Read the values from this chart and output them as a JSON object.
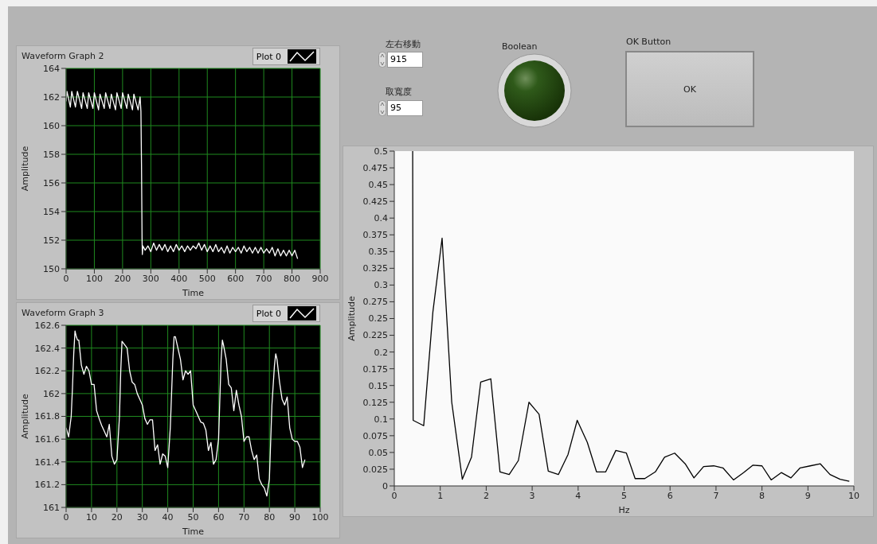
{
  "chart_data": [
    {
      "type": "line",
      "title": "Waveform Graph 2",
      "xlabel": "Time",
      "ylabel": "Amplitude",
      "xlim": [
        0,
        900
      ],
      "xticks": [
        0,
        100,
        200,
        300,
        400,
        500,
        600,
        700,
        800,
        900
      ],
      "ylim": [
        150,
        164
      ],
      "yticks": [
        150,
        152,
        154,
        156,
        158,
        160,
        162,
        164
      ],
      "grid": true,
      "legend": "top right",
      "marker": "none",
      "line_style": "solid",
      "series": [
        {
          "name": "Plot 0",
          "color": "#ffffff",
          "x": [
            0,
            3,
            15,
            20,
            33,
            40,
            55,
            60,
            75,
            80,
            95,
            100,
            115,
            120,
            135,
            140,
            155,
            160,
            175,
            180,
            195,
            200,
            215,
            220,
            235,
            240,
            255,
            262,
            265,
            267,
            269,
            270,
            272,
            280,
            290,
            300,
            310,
            320,
            330,
            340,
            350,
            360,
            370,
            380,
            390,
            400,
            410,
            420,
            430,
            440,
            450,
            460,
            470,
            480,
            490,
            500,
            510,
            520,
            530,
            540,
            550,
            560,
            570,
            580,
            590,
            600,
            610,
            620,
            630,
            640,
            650,
            660,
            670,
            680,
            690,
            700,
            710,
            720,
            730,
            740,
            750,
            760,
            770,
            780,
            790,
            800,
            810,
            820
          ],
          "values": [
            161.7,
            162.4,
            161.3,
            162.4,
            161.3,
            162.4,
            161.2,
            162.3,
            161.2,
            162.3,
            161.2,
            162.3,
            161.1,
            162.2,
            161.2,
            162.3,
            161.2,
            162.2,
            161.1,
            162.3,
            161.2,
            162.3,
            161.2,
            162.2,
            161.1,
            162.2,
            161.1,
            162.0,
            161.0,
            157.3,
            152.1,
            151.0,
            151.6,
            151.3,
            151.6,
            151.2,
            151.8,
            151.3,
            151.7,
            151.3,
            151.7,
            151.2,
            151.6,
            151.2,
            151.7,
            151.3,
            151.6,
            151.2,
            151.6,
            151.3,
            151.6,
            151.4,
            151.8,
            151.3,
            151.7,
            151.2,
            151.6,
            151.2,
            151.7,
            151.2,
            151.5,
            151.1,
            151.6,
            151.1,
            151.5,
            151.2,
            151.5,
            151.1,
            151.6,
            151.2,
            151.5,
            151.1,
            151.5,
            151.1,
            151.5,
            151.1,
            151.4,
            151.1,
            151.5,
            150.9,
            151.4,
            150.9,
            151.3,
            150.9,
            151.3,
            150.9,
            151.3,
            150.7
          ]
        }
      ]
    },
    {
      "type": "other",
      "annotations": [
        "左右移動",
        "915",
        "取寬度",
        "95",
        "Boolean",
        "OK Button",
        "OK"
      ]
    },
    {
      "type": "line",
      "xlabel": "Hz",
      "ylabel": "Amplitude",
      "xlim": [
        0,
        10
      ],
      "xticks": [
        0,
        1,
        2,
        3,
        4,
        5,
        6,
        7,
        8,
        9,
        10
      ],
      "ylim": [
        0,
        0.5
      ],
      "yticks": [
        0,
        0.025,
        0.05,
        0.075,
        0.1,
        0.125,
        0.15,
        0.175,
        0.2,
        0.225,
        0.25,
        0.275,
        0.3,
        0.325,
        0.35,
        0.375,
        0.4,
        0.425,
        0.45,
        0.475,
        0.5
      ],
      "grid": false,
      "marker": "none",
      "line_style": "solid",
      "series": [
        {
          "color": "#000000",
          "x": [
            0.4,
            0.41,
            0.64,
            0.84,
            1.04,
            1.25,
            1.48,
            1.68,
            1.88,
            2.1,
            2.3,
            2.5,
            2.7,
            2.93,
            3.15,
            3.35,
            3.57,
            3.78,
            3.98,
            4.2,
            4.4,
            4.6,
            4.82,
            5.05,
            5.24,
            5.45,
            5.68,
            5.88,
            6.1,
            6.33,
            6.52,
            6.73,
            6.95,
            7.15,
            7.38,
            7.6,
            7.8,
            8.0,
            8.2,
            8.42,
            8.63,
            8.83,
            9.05,
            9.27,
            9.48,
            9.7,
            9.9
          ],
          "values": [
            0.5,
            0.098,
            0.09,
            0.26,
            0.37,
            0.125,
            0.01,
            0.043,
            0.155,
            0.16,
            0.021,
            0.017,
            0.038,
            0.125,
            0.107,
            0.022,
            0.017,
            0.047,
            0.098,
            0.065,
            0.021,
            0.021,
            0.053,
            0.049,
            0.011,
            0.011,
            0.021,
            0.043,
            0.049,
            0.033,
            0.012,
            0.029,
            0.03,
            0.027,
            0.009,
            0.02,
            0.031,
            0.03,
            0.009,
            0.02,
            0.012,
            0.027,
            0.03,
            0.033,
            0.017,
            0.01,
            0.007
          ]
        }
      ]
    },
    {
      "type": "line",
      "title": "Waveform Graph 3",
      "xlabel": "Time",
      "ylabel": "Amplitude",
      "xlim": [
        0,
        100
      ],
      "xticks": [
        0,
        10,
        20,
        30,
        40,
        50,
        60,
        70,
        80,
        90,
        100
      ],
      "ylim": [
        161,
        162.6
      ],
      "yticks": [
        161,
        161.2,
        161.4,
        161.6,
        161.8,
        162,
        162.2,
        162.4,
        162.6
      ],
      "grid": true,
      "legend": "top right",
      "marker": "none",
      "line_style": "solid",
      "series": [
        {
          "name": "Plot 0",
          "color": "#ffffff",
          "x": [
            0,
            1,
            2,
            2.5,
            3,
            3.5,
            4,
            4.5,
            5,
            6,
            7,
            8,
            9,
            10,
            11,
            12,
            13,
            14,
            15,
            16,
            17,
            18,
            19,
            20,
            21,
            21.5,
            22,
            23,
            24,
            25,
            26,
            27,
            28,
            29,
            30,
            31,
            32,
            33,
            34,
            35,
            36,
            37,
            38,
            39,
            40,
            41,
            42,
            42.5,
            43,
            44,
            45,
            46,
            47,
            48,
            49,
            50,
            51,
            52,
            53,
            54,
            55,
            56,
            57,
            58,
            59,
            60,
            61,
            61.5,
            62,
            63,
            64,
            65,
            66,
            67,
            68,
            69,
            70,
            71,
            72,
            73,
            74,
            75,
            76,
            77,
            78,
            79,
            80,
            81,
            82,
            82.5,
            83,
            84,
            85,
            86,
            87,
            88,
            89,
            90,
            91,
            92,
            93,
            94
          ],
          "values": [
            161.7,
            161.62,
            161.8,
            162.05,
            162.35,
            162.55,
            162.5,
            162.47,
            162.47,
            162.25,
            162.17,
            162.24,
            162.2,
            162.08,
            162.08,
            161.85,
            161.78,
            161.72,
            161.67,
            161.62,
            161.73,
            161.45,
            161.38,
            161.42,
            161.8,
            162.2,
            162.46,
            162.43,
            162.4,
            162.2,
            162.1,
            162.08,
            162.0,
            161.95,
            161.9,
            161.78,
            161.73,
            161.77,
            161.77,
            161.5,
            161.55,
            161.38,
            161.47,
            161.45,
            161.35,
            161.7,
            162.3,
            162.5,
            162.5,
            162.4,
            162.3,
            162.12,
            162.2,
            162.17,
            162.2,
            161.9,
            161.85,
            161.8,
            161.75,
            161.74,
            161.68,
            161.5,
            161.57,
            161.38,
            161.42,
            161.6,
            162.3,
            162.47,
            162.42,
            162.3,
            162.08,
            162.05,
            161.85,
            162.03,
            161.9,
            161.8,
            161.58,
            161.62,
            161.62,
            161.5,
            161.42,
            161.46,
            161.25,
            161.2,
            161.17,
            161.1,
            161.25,
            161.9,
            162.25,
            162.35,
            162.3,
            162.1,
            161.95,
            161.9,
            161.97,
            161.7,
            161.6,
            161.58,
            161.58,
            161.53,
            161.35,
            161.42
          ]
        }
      ]
    }
  ]
}
